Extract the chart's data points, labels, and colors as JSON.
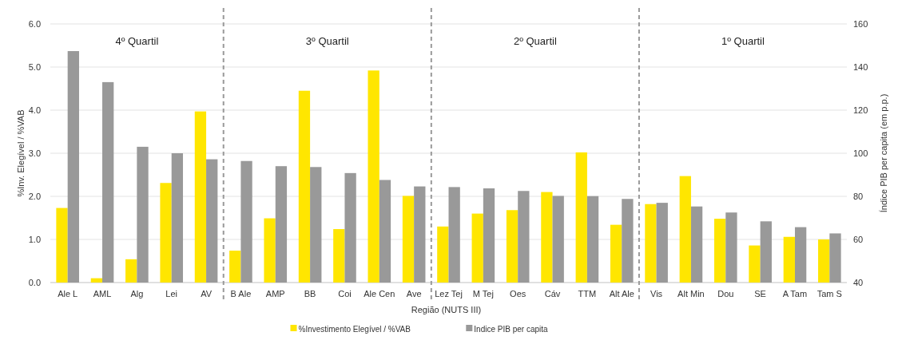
{
  "chart_data": {
    "type": "bar",
    "xlabel": "Região (NUTS III)",
    "ylabel": "%Inv. Elegível  / %VAB",
    "y2label": "Índice PIB per capita (em p.p.)",
    "categories": [
      "Ale L",
      "AML",
      "Alg",
      "Lei",
      "AV",
      "B Ale",
      "AMP",
      "BB",
      "Coi",
      "Ale Cen",
      "Ave",
      "Lez Tej",
      "M Tej",
      "Oes",
      "Cáv",
      "TTM",
      "Alt Ale",
      "Vis",
      "Alt Min",
      "Dou",
      "SE",
      "A Tam",
      "Tam S"
    ],
    "series": [
      {
        "name": "%Investimento Elegível / %VAB",
        "color": "#ffe600",
        "values": [
          1.73,
          0.1,
          0.54,
          2.31,
          3.97,
          0.74,
          1.49,
          4.45,
          1.24,
          4.92,
          2.01,
          1.3,
          1.6,
          1.68,
          2.1,
          3.02,
          1.34,
          1.82,
          2.47,
          1.48,
          0.86,
          1.06,
          1.0
        ]
      },
      {
        "name": "Indice PIB per capita",
        "color": "#999999",
        "axis": "y2",
        "values": [
          147.4,
          133,
          103,
          100,
          97.2,
          96.4,
          94,
          93.6,
          90.8,
          87.6,
          84.6,
          84.3,
          83.7,
          82.5,
          80.2,
          80.1,
          78.8,
          77,
          75.3,
          72.5,
          68.4,
          65.7,
          62.8
        ]
      }
    ],
    "ylim": [
      0,
      6
    ],
    "yticks": [
      {
        "value": 0,
        "label": "0.0"
      },
      {
        "value": 1,
        "label": "1.0"
      },
      {
        "value": 2,
        "label": "2.0"
      },
      {
        "value": 3,
        "label": "3.0"
      },
      {
        "value": 4,
        "label": "4.0"
      },
      {
        "value": 5,
        "label": "5.0"
      },
      {
        "value": 6,
        "label": "6.0"
      }
    ],
    "y2lim": [
      40,
      160
    ],
    "y2ticks": [
      40,
      60,
      80,
      100,
      120,
      140,
      160
    ],
    "annotations": [
      "4º Quartil",
      "3º Quartil",
      "2º Quartil",
      "1º Quartil"
    ],
    "grid": "y",
    "legend": "bottom"
  }
}
